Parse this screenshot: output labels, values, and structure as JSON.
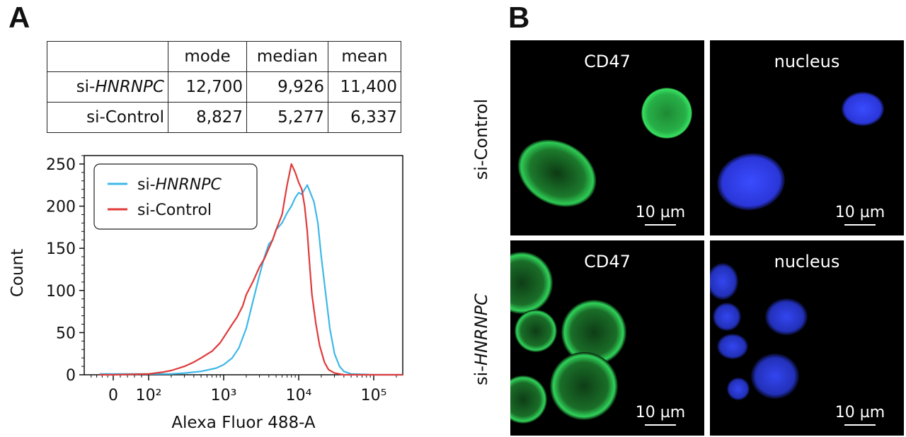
{
  "panels": {
    "a_label": "A",
    "b_label": "B"
  },
  "stats_table": {
    "headers": [
      "",
      "mode",
      "median",
      "mean"
    ],
    "rows": [
      {
        "prefix": "si-",
        "name": "HNRNPC",
        "name_italic": true,
        "values": [
          "12,700",
          "9,926",
          "11,400"
        ]
      },
      {
        "prefix": "si-",
        "name": "Control",
        "name_italic": false,
        "values": [
          "8,827",
          "5,277",
          "6,337"
        ]
      }
    ]
  },
  "chart_data": {
    "type": "line",
    "title": "",
    "xlabel": "Alexa Fluor 488-A",
    "ylabel": "Count",
    "x_scale": "logicle",
    "x_ticks": [
      {
        "value": 0,
        "label": "0"
      },
      {
        "value": 100,
        "label": "10²"
      },
      {
        "value": 1000,
        "label": "10³"
      },
      {
        "value": 10000,
        "label": "10⁴"
      },
      {
        "value": 100000,
        "label": "10⁵"
      }
    ],
    "ylim": [
      0,
      260
    ],
    "y_ticks": [
      0,
      50,
      100,
      150,
      200,
      250
    ],
    "legend_position": "top-left",
    "series": [
      {
        "name": "si-HNRNPC",
        "name_prefix": "si-",
        "name_main": "HNRNPC",
        "name_italic": true,
        "color": "#3db8e8",
        "points": [
          [
            -50,
            1
          ],
          [
            0,
            1
          ],
          [
            100,
            1
          ],
          [
            200,
            1
          ],
          [
            300,
            2
          ],
          [
            500,
            4
          ],
          [
            800,
            8
          ],
          [
            1000,
            12
          ],
          [
            1300,
            20
          ],
          [
            1600,
            32
          ],
          [
            2000,
            55
          ],
          [
            2500,
            90
          ],
          [
            3000,
            118
          ],
          [
            3500,
            140
          ],
          [
            4000,
            155
          ],
          [
            4500,
            160
          ],
          [
            5000,
            172
          ],
          [
            6000,
            180
          ],
          [
            7000,
            192
          ],
          [
            8000,
            200
          ],
          [
            9000,
            210
          ],
          [
            10000,
            216
          ],
          [
            11000,
            214
          ],
          [
            12000,
            220
          ],
          [
            13000,
            225
          ],
          [
            14000,
            218
          ],
          [
            16000,
            205
          ],
          [
            18000,
            180
          ],
          [
            20000,
            140
          ],
          [
            23000,
            95
          ],
          [
            26000,
            55
          ],
          [
            30000,
            25
          ],
          [
            35000,
            10
          ],
          [
            40000,
            4
          ],
          [
            50000,
            1
          ],
          [
            100000,
            0
          ],
          [
            300000,
            0
          ]
        ]
      },
      {
        "name": "si-Control",
        "name_prefix": "si-",
        "name_main": "Control",
        "name_italic": false,
        "color": "#e03a3a",
        "points": [
          [
            -50,
            0
          ],
          [
            0,
            0
          ],
          [
            100,
            1
          ],
          [
            150,
            3
          ],
          [
            200,
            5
          ],
          [
            300,
            10
          ],
          [
            400,
            15
          ],
          [
            500,
            20
          ],
          [
            700,
            28
          ],
          [
            900,
            38
          ],
          [
            1100,
            50
          ],
          [
            1300,
            60
          ],
          [
            1500,
            68
          ],
          [
            1800,
            82
          ],
          [
            2000,
            95
          ],
          [
            2500,
            112
          ],
          [
            3000,
            128
          ],
          [
            3500,
            138
          ],
          [
            4000,
            150
          ],
          [
            4500,
            160
          ],
          [
            5000,
            172
          ],
          [
            6000,
            190
          ],
          [
            7000,
            225
          ],
          [
            8000,
            250
          ],
          [
            9000,
            240
          ],
          [
            10000,
            228
          ],
          [
            11000,
            220
          ],
          [
            12000,
            200
          ],
          [
            13000,
            170
          ],
          [
            14000,
            130
          ],
          [
            15000,
            95
          ],
          [
            17000,
            60
          ],
          [
            19000,
            35
          ],
          [
            22000,
            15
          ],
          [
            25000,
            6
          ],
          [
            30000,
            2
          ],
          [
            40000,
            0
          ],
          [
            300000,
            0
          ]
        ]
      }
    ]
  },
  "microscopy": {
    "column_labels": [
      "CD47",
      "nucleus"
    ],
    "row_labels": [
      {
        "prefix": "si-",
        "name": "Control",
        "italic": false
      },
      {
        "prefix": "si-",
        "name": "HNRNPC",
        "italic": true
      }
    ],
    "scale_bar_label": "10 µm",
    "channel_colors": {
      "cd47": "#2ecc55",
      "nucleus": "#2f3de0"
    }
  }
}
